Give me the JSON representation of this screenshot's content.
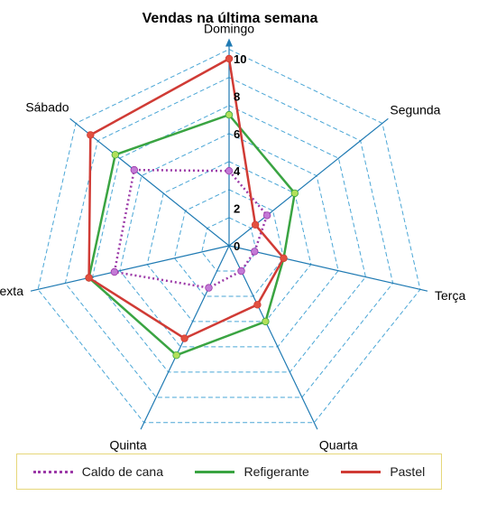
{
  "chart_data": {
    "type": "radar",
    "title": "Vendas na última semana",
    "axes": [
      "Domingo",
      "Segunda",
      "Terça",
      "Quarta",
      "Quinta",
      "Sexta",
      "Sábado"
    ],
    "tick_labels": [
      "0",
      "2",
      "4",
      "6",
      "8",
      "10"
    ],
    "ylim": [
      0,
      10
    ],
    "grid": true,
    "legend_position": "bottom",
    "series": [
      {
        "name": "Caldo de cana",
        "values": [
          4,
          2.6,
          1.4,
          1.5,
          2.5,
          6.3,
          6.5
        ],
        "color": "#9c3aa8",
        "style": "dotted",
        "marker_color": "#c37ad6"
      },
      {
        "name": "Refigerante",
        "values": [
          7,
          4.5,
          3,
          4.5,
          6.5,
          7.7,
          7.8
        ],
        "color": "#3aa442",
        "style": "solid",
        "marker_color": "#b2e05a"
      },
      {
        "name": "Pastel",
        "values": [
          10,
          1.8,
          3,
          3.5,
          5.5,
          7.7,
          9.5
        ],
        "color": "#d03b35",
        "style": "solid",
        "marker_color": "#e25040"
      }
    ]
  },
  "colors": {
    "axis": "#1f7ab3",
    "grid": "#4aa6d6"
  }
}
